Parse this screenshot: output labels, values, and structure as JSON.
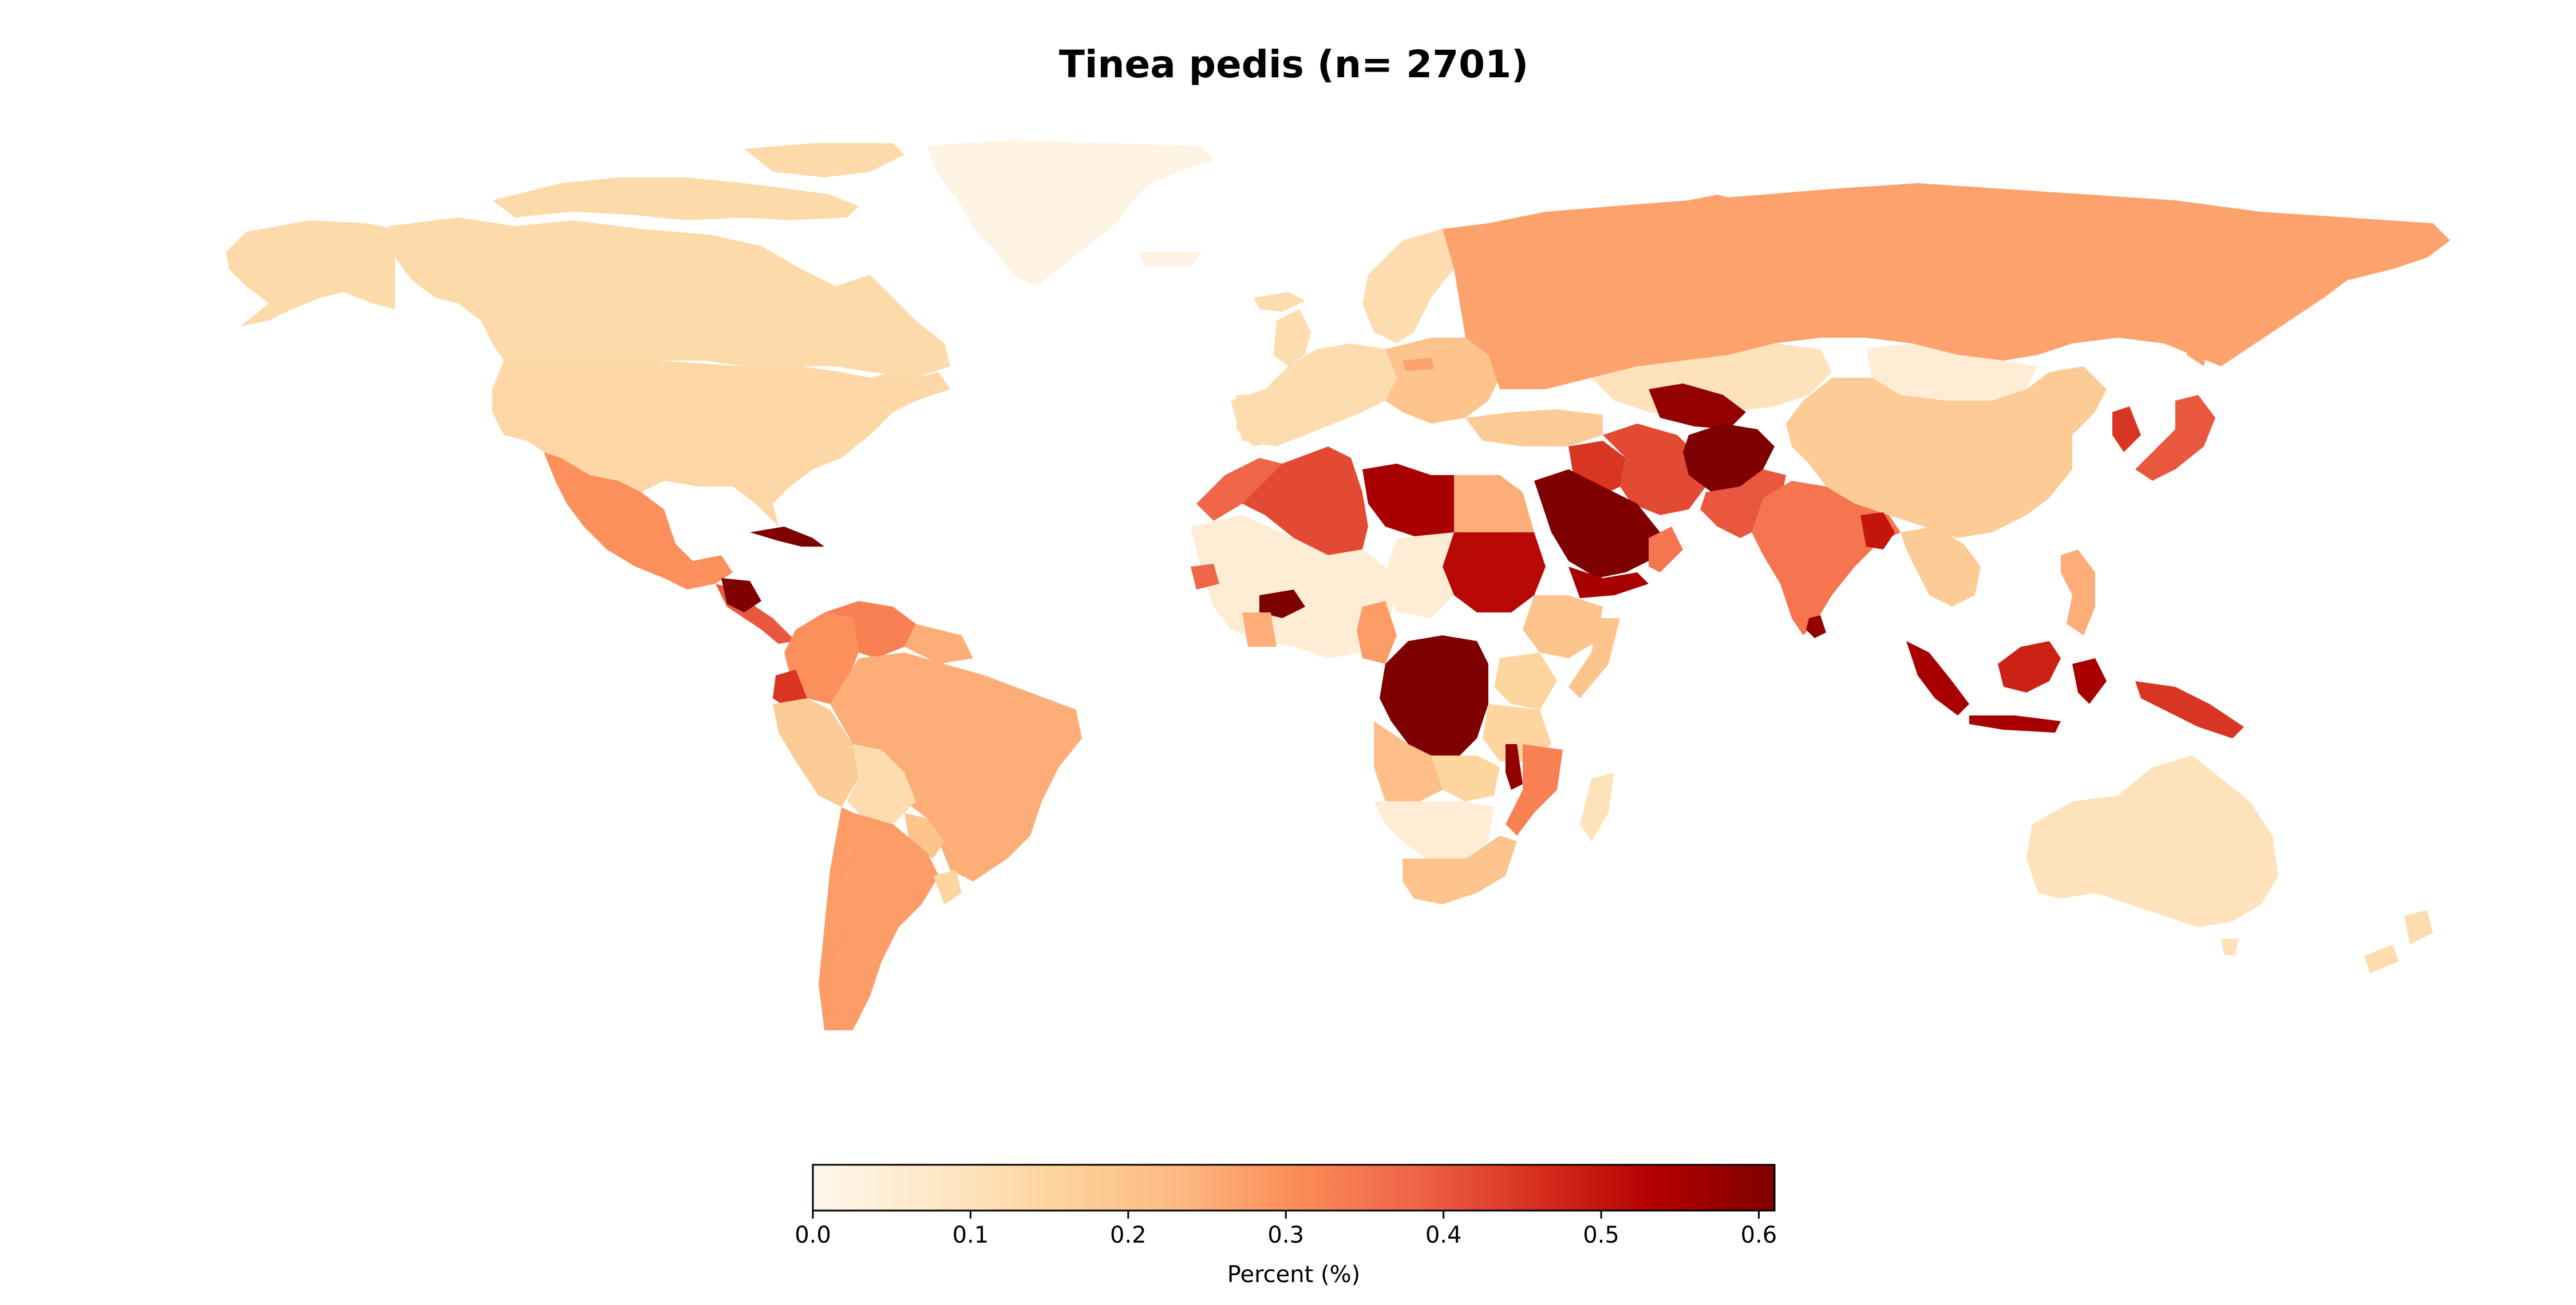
{
  "title": "Tinea pedis (n= 2701)",
  "colorbar": {
    "label": "Percent (%)",
    "ticks": [
      "0.0",
      "0.1",
      "0.2",
      "0.3",
      "0.4",
      "0.5",
      "0.6"
    ],
    "min": 0.0,
    "max": 0.61,
    "colormap": "OrRd",
    "stops": [
      "#fff7ec",
      "#fee8c8",
      "#fdd49e",
      "#fdbb84",
      "#fc8d59",
      "#ef6548",
      "#d7301f",
      "#b30000",
      "#7f0000"
    ]
  },
  "chart_data": {
    "type": "choropleth",
    "title": "Tinea pedis (n= 2701)",
    "value_label": "Percent (%)",
    "range": [
      0.0,
      0.61
    ],
    "regions": [
      {
        "name": "Canada",
        "value": 0.13
      },
      {
        "name": "Alaska",
        "value": 0.13
      },
      {
        "name": "United States",
        "value": 0.14
      },
      {
        "name": "Greenland",
        "value": 0.02
      },
      {
        "name": "Mexico",
        "value": 0.3
      },
      {
        "name": "Cuba",
        "value": 0.61
      },
      {
        "name": "Honduras",
        "value": 0.61
      },
      {
        "name": "Central America",
        "value": 0.4
      },
      {
        "name": "Colombia",
        "value": 0.3
      },
      {
        "name": "Venezuela",
        "value": 0.33
      },
      {
        "name": "Ecuador",
        "value": 0.45
      },
      {
        "name": "Peru",
        "value": 0.18
      },
      {
        "name": "Brazil",
        "value": 0.25
      },
      {
        "name": "Bolivia",
        "value": 0.12
      },
      {
        "name": "Paraguay",
        "value": 0.2
      },
      {
        "name": "Chile",
        "value": 0.28
      },
      {
        "name": "Argentina",
        "value": 0.28
      },
      {
        "name": "Uruguay",
        "value": 0.15
      },
      {
        "name": "Western Europe",
        "value": 0.12
      },
      {
        "name": "Scandinavia",
        "value": 0.12
      },
      {
        "name": "Eastern Europe",
        "value": 0.2
      },
      {
        "name": "Russia",
        "value": 0.27
      },
      {
        "name": "Kazakhstan",
        "value": 0.1
      },
      {
        "name": "Mongolia",
        "value": 0.05
      },
      {
        "name": "China",
        "value": 0.18
      },
      {
        "name": "Japan",
        "value": 0.4
      },
      {
        "name": "Korea",
        "value": 0.45
      },
      {
        "name": "Turkey",
        "value": 0.18
      },
      {
        "name": "Iran",
        "value": 0.42
      },
      {
        "name": "Afghanistan",
        "value": 0.61
      },
      {
        "name": "Turkmenistan",
        "value": 0.58
      },
      {
        "name": "Pakistan",
        "value": 0.4
      },
      {
        "name": "India",
        "value": 0.35
      },
      {
        "name": "Bangladesh",
        "value": 0.5
      },
      {
        "name": "Sri Lanka",
        "value": 0.58
      },
      {
        "name": "Saudi Arabia",
        "value": 0.61
      },
      {
        "name": "Yemen",
        "value": 0.55
      },
      {
        "name": "Oman",
        "value": 0.35
      },
      {
        "name": "Iraq",
        "value": 0.45
      },
      {
        "name": "Morocco",
        "value": 0.38
      },
      {
        "name": "Algeria",
        "value": 0.42
      },
      {
        "name": "Libya",
        "value": 0.55
      },
      {
        "name": "Egypt",
        "value": 0.25
      },
      {
        "name": "Sudan",
        "value": 0.52
      },
      {
        "name": "Burkina Faso",
        "value": 0.61
      },
      {
        "name": "West Africa",
        "value": 0.05
      },
      {
        "name": "Cameroon",
        "value": 0.28
      },
      {
        "name": "DR Congo",
        "value": 0.61
      },
      {
        "name": "Ethiopia",
        "value": 0.2
      },
      {
        "name": "Kenya",
        "value": 0.15
      },
      {
        "name": "Tanzania",
        "value": 0.15
      },
      {
        "name": "Malawi",
        "value": 0.58
      },
      {
        "name": "Mozambique",
        "value": 0.33
      },
      {
        "name": "Angola",
        "value": 0.22
      },
      {
        "name": "Zambia",
        "value": 0.15
      },
      {
        "name": "Namibia",
        "value": 0.05
      },
      {
        "name": "South Africa",
        "value": 0.2
      },
      {
        "name": "Madagascar",
        "value": 0.1
      },
      {
        "name": "Thailand",
        "value": 0.18
      },
      {
        "name": "Philippines",
        "value": 0.25
      },
      {
        "name": "Malaysia",
        "value": 0.48
      },
      {
        "name": "Indonesia",
        "value": 0.55
      },
      {
        "name": "Papua New Guinea",
        "value": 0.45
      },
      {
        "name": "Australia",
        "value": 0.1
      },
      {
        "name": "New Zealand",
        "value": 0.12
      }
    ]
  }
}
